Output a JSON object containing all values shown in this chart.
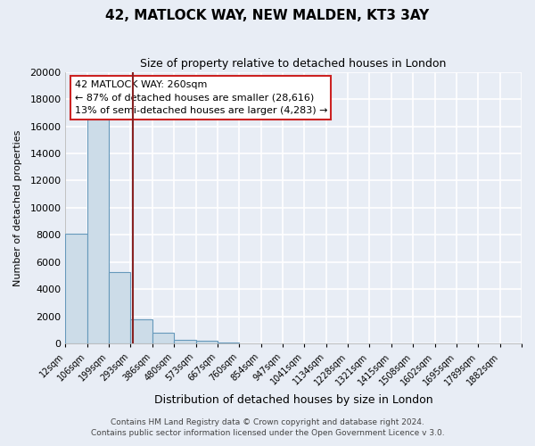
{
  "title": "42, MATLOCK WAY, NEW MALDEN, KT3 3AY",
  "subtitle": "Size of property relative to detached houses in London",
  "xlabel": "Distribution of detached houses by size in London",
  "ylabel": "Number of detached properties",
  "bar_labels": [
    "12sqm",
    "106sqm",
    "199sqm",
    "293sqm",
    "386sqm",
    "480sqm",
    "573sqm",
    "667sqm",
    "760sqm",
    "854sqm",
    "947sqm",
    "1041sqm",
    "1134sqm",
    "1228sqm",
    "1321sqm",
    "1415sqm",
    "1508sqm",
    "1602sqm",
    "1695sqm",
    "1789sqm",
    "1882sqm"
  ],
  "bar_values": [
    8100,
    16500,
    5300,
    1800,
    800,
    300,
    250,
    100,
    50,
    20,
    15,
    10,
    5,
    5,
    5,
    5,
    5,
    5,
    5,
    5,
    5
  ],
  "bar_color": "#ccdce8",
  "bar_edge_color": "#6699bb",
  "vline_x": 2.62,
  "vline_color": "#882222",
  "ylim": [
    0,
    20000
  ],
  "yticks": [
    0,
    2000,
    4000,
    6000,
    8000,
    10000,
    12000,
    14000,
    16000,
    18000,
    20000
  ],
  "annotation_title": "42 MATLOCK WAY: 260sqm",
  "annotation_line1": "← 87% of detached houses are smaller (28,616)",
  "annotation_line2": "13% of semi-detached houses are larger (4,283) →",
  "annotation_box_facecolor": "#ffffff",
  "annotation_box_edgecolor": "#cc2222",
  "footer1": "Contains HM Land Registry data © Crown copyright and database right 2024.",
  "footer2": "Contains public sector information licensed under the Open Government Licence v 3.0.",
  "bg_color": "#e8edf5",
  "plot_bg_color": "#e8edf5",
  "grid_color": "#ffffff",
  "grid_linewidth": 1.2
}
